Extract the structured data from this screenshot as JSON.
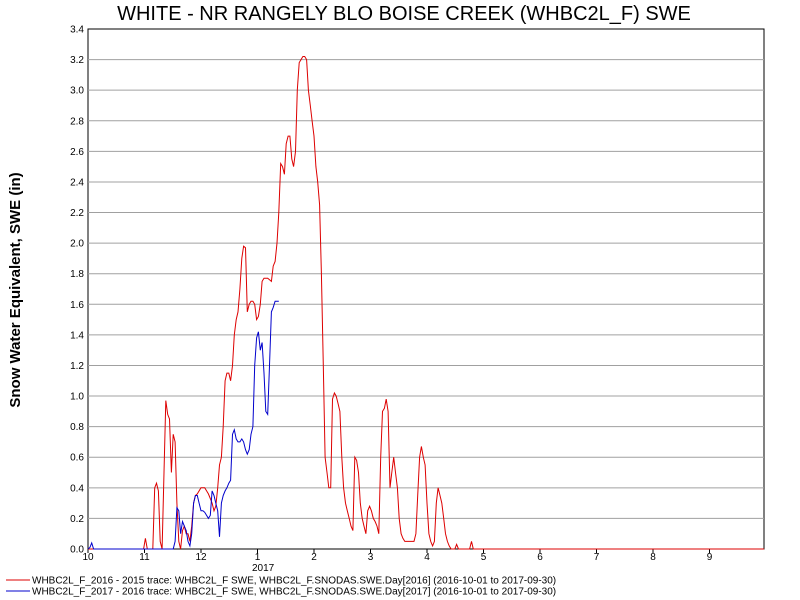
{
  "chart_data": {
    "type": "line",
    "title": "WHITE - NR RANGELY BLO BOISE CREEK (WHBC2L_F) SWE",
    "ylabel": "Snow Water Equivalent, SWE (in)",
    "xlabel": "",
    "ylim": [
      0,
      3.4
    ],
    "y_ticks": [
      "0.0",
      "0.2",
      "0.4",
      "0.6",
      "0.8",
      "1.0",
      "1.2",
      "1.4",
      "1.6",
      "1.8",
      "2.0",
      "2.2",
      "2.4",
      "2.6",
      "2.8",
      "3.0",
      "3.2",
      "3.4"
    ],
    "x_ticks": [
      "10",
      "11",
      "12",
      "1",
      "2",
      "3",
      "4",
      "5",
      "6",
      "7",
      "8",
      "9"
    ],
    "x_year_label": "2017",
    "grid": "horizontal",
    "legend_position": "bottom",
    "series": [
      {
        "name": "WHBC2L_F_2016 - 2015 trace: WHBC2L_F SWE, WHBC2L_F.SNODAS.SWE.Day[2016] (2016-10-01 to 2017-09-30)",
        "color": "#dd0000",
        "points": [
          [
            0,
            0
          ],
          [
            30,
            0
          ],
          [
            31,
            0.07
          ],
          [
            32,
            0
          ],
          [
            35,
            0
          ],
          [
            36,
            0.4
          ],
          [
            37,
            0.43
          ],
          [
            38,
            0.38
          ],
          [
            39,
            0.05
          ],
          [
            40,
            0
          ],
          [
            41,
            0.5
          ],
          [
            42,
            0.97
          ],
          [
            43,
            0.88
          ],
          [
            44,
            0.85
          ],
          [
            45,
            0.5
          ],
          [
            46,
            0.75
          ],
          [
            47,
            0.7
          ],
          [
            48,
            0.3
          ],
          [
            49,
            0.05
          ],
          [
            50,
            0
          ],
          [
            51,
            0.12
          ],
          [
            52,
            0.15
          ],
          [
            53,
            0.1
          ],
          [
            54,
            0.1
          ],
          [
            55,
            0.05
          ],
          [
            56,
            0.15
          ],
          [
            57,
            0.3
          ],
          [
            58,
            0.35
          ],
          [
            59,
            0.36
          ],
          [
            60,
            0.38
          ],
          [
            61,
            0.4
          ],
          [
            62,
            0.4
          ],
          [
            63,
            0.4
          ],
          [
            64,
            0.38
          ],
          [
            65,
            0.36
          ],
          [
            66,
            0.33
          ],
          [
            67,
            0.3
          ],
          [
            68,
            0.25
          ],
          [
            69,
            0.28
          ],
          [
            70,
            0.4
          ],
          [
            71,
            0.55
          ],
          [
            72,
            0.6
          ],
          [
            73,
            0.8
          ],
          [
            74,
            1.1
          ],
          [
            75,
            1.15
          ],
          [
            76,
            1.15
          ],
          [
            77,
            1.1
          ],
          [
            78,
            1.2
          ],
          [
            79,
            1.4
          ],
          [
            80,
            1.5
          ],
          [
            81,
            1.55
          ],
          [
            82,
            1.7
          ],
          [
            83,
            1.9
          ],
          [
            84,
            1.98
          ],
          [
            85,
            1.97
          ],
          [
            86,
            1.55
          ],
          [
            87,
            1.6
          ],
          [
            88,
            1.62
          ],
          [
            89,
            1.62
          ],
          [
            90,
            1.6
          ],
          [
            91,
            1.5
          ],
          [
            92,
            1.52
          ],
          [
            93,
            1.6
          ],
          [
            94,
            1.75
          ],
          [
            95,
            1.77
          ],
          [
            96,
            1.77
          ],
          [
            97,
            1.77
          ],
          [
            98,
            1.76
          ],
          [
            99,
            1.75
          ],
          [
            100,
            1.85
          ],
          [
            101,
            1.88
          ],
          [
            102,
            2.0
          ],
          [
            103,
            2.2
          ],
          [
            104,
            2.52
          ],
          [
            105,
            2.5
          ],
          [
            106,
            2.45
          ],
          [
            107,
            2.65
          ],
          [
            108,
            2.7
          ],
          [
            109,
            2.7
          ],
          [
            110,
            2.55
          ],
          [
            111,
            2.5
          ],
          [
            112,
            2.6
          ],
          [
            113,
            3.0
          ],
          [
            114,
            3.18
          ],
          [
            115,
            3.2
          ],
          [
            116,
            3.22
          ],
          [
            117,
            3.22
          ],
          [
            118,
            3.2
          ],
          [
            119,
            3.0
          ],
          [
            120,
            2.9
          ],
          [
            121,
            2.8
          ],
          [
            122,
            2.7
          ],
          [
            123,
            2.5
          ],
          [
            124,
            2.4
          ],
          [
            125,
            2.25
          ],
          [
            126,
            1.8
          ],
          [
            127,
            1.2
          ],
          [
            128,
            0.6
          ],
          [
            129,
            0.5
          ],
          [
            130,
            0.4
          ],
          [
            131,
            0.4
          ],
          [
            132,
            0.98
          ],
          [
            133,
            1.02
          ],
          [
            134,
            1.0
          ],
          [
            135,
            0.95
          ],
          [
            136,
            0.9
          ],
          [
            137,
            0.6
          ],
          [
            138,
            0.4
          ],
          [
            139,
            0.3
          ],
          [
            140,
            0.25
          ],
          [
            141,
            0.2
          ],
          [
            142,
            0.15
          ],
          [
            143,
            0.12
          ],
          [
            144,
            0.6
          ],
          [
            145,
            0.58
          ],
          [
            146,
            0.5
          ],
          [
            147,
            0.3
          ],
          [
            148,
            0.2
          ],
          [
            149,
            0.15
          ],
          [
            150,
            0.1
          ],
          [
            151,
            0.25
          ],
          [
            152,
            0.28
          ],
          [
            153,
            0.25
          ],
          [
            154,
            0.2
          ],
          [
            155,
            0.18
          ],
          [
            156,
            0.15
          ],
          [
            157,
            0.1
          ],
          [
            158,
            0.6
          ],
          [
            159,
            0.9
          ],
          [
            160,
            0.92
          ],
          [
            161,
            0.98
          ],
          [
            162,
            0.9
          ],
          [
            163,
            0.4
          ],
          [
            164,
            0.5
          ],
          [
            165,
            0.6
          ],
          [
            166,
            0.5
          ],
          [
            167,
            0.4
          ],
          [
            168,
            0.2
          ],
          [
            169,
            0.1
          ],
          [
            170,
            0.07
          ],
          [
            171,
            0.05
          ],
          [
            172,
            0.05
          ],
          [
            176,
            0.05
          ],
          [
            177,
            0.1
          ],
          [
            178,
            0.35
          ],
          [
            179,
            0.6
          ],
          [
            180,
            0.67
          ],
          [
            181,
            0.6
          ],
          [
            182,
            0.55
          ],
          [
            183,
            0.3
          ],
          [
            184,
            0.1
          ],
          [
            185,
            0.05
          ],
          [
            186,
            0.02
          ],
          [
            187,
            0.05
          ],
          [
            188,
            0.3
          ],
          [
            189,
            0.4
          ],
          [
            190,
            0.35
          ],
          [
            191,
            0.3
          ],
          [
            192,
            0.2
          ],
          [
            193,
            0.1
          ],
          [
            194,
            0.05
          ],
          [
            195,
            0.02
          ],
          [
            196,
            0
          ],
          [
            198,
            0
          ],
          [
            199,
            0.03
          ],
          [
            200,
            0
          ],
          [
            206,
            0
          ],
          [
            207,
            0.05
          ],
          [
            208,
            0
          ],
          [
            365,
            0
          ]
        ]
      },
      {
        "name": "WHBC2L_F_2017 - 2016 trace: WHBC2L_F SWE, WHBC2L_F.SNODAS.SWE.Day[2017] (2016-10-01 to 2017-09-30)",
        "color": "#0000cc",
        "points": [
          [
            0,
            0
          ],
          [
            1,
            0.01
          ],
          [
            2,
            0.04
          ],
          [
            3,
            0
          ],
          [
            46,
            0
          ],
          [
            47,
            0.05
          ],
          [
            48,
            0.27
          ],
          [
            49,
            0.25
          ],
          [
            50,
            0.1
          ],
          [
            51,
            0.18
          ],
          [
            52,
            0.15
          ],
          [
            53,
            0.12
          ],
          [
            54,
            0.05
          ],
          [
            55,
            0.02
          ],
          [
            56,
            0.1
          ],
          [
            57,
            0.3
          ],
          [
            58,
            0.35
          ],
          [
            59,
            0.35
          ],
          [
            60,
            0.3
          ],
          [
            61,
            0.25
          ],
          [
            62,
            0.25
          ],
          [
            63,
            0.24
          ],
          [
            64,
            0.22
          ],
          [
            65,
            0.2
          ],
          [
            66,
            0.22
          ],
          [
            67,
            0.38
          ],
          [
            68,
            0.35
          ],
          [
            69,
            0.3
          ],
          [
            70,
            0.25
          ],
          [
            71,
            0.08
          ],
          [
            72,
            0.3
          ],
          [
            73,
            0.35
          ],
          [
            74,
            0.38
          ],
          [
            75,
            0.4
          ],
          [
            76,
            0.43
          ],
          [
            77,
            0.45
          ],
          [
            78,
            0.75
          ],
          [
            79,
            0.78
          ],
          [
            80,
            0.72
          ],
          [
            81,
            0.7
          ],
          [
            82,
            0.7
          ],
          [
            83,
            0.72
          ],
          [
            84,
            0.7
          ],
          [
            85,
            0.65
          ],
          [
            86,
            0.62
          ],
          [
            87,
            0.65
          ],
          [
            88,
            0.75
          ],
          [
            89,
            0.8
          ],
          [
            90,
            1.2
          ],
          [
            91,
            1.38
          ],
          [
            92,
            1.42
          ],
          [
            93,
            1.3
          ],
          [
            94,
            1.35
          ],
          [
            95,
            1.15
          ],
          [
            96,
            0.9
          ],
          [
            97,
            0.88
          ],
          [
            98,
            1.2
          ],
          [
            99,
            1.55
          ],
          [
            100,
            1.58
          ],
          [
            101,
            1.62
          ],
          [
            102,
            1.62
          ],
          [
            103,
            1.62
          ]
        ]
      }
    ]
  }
}
